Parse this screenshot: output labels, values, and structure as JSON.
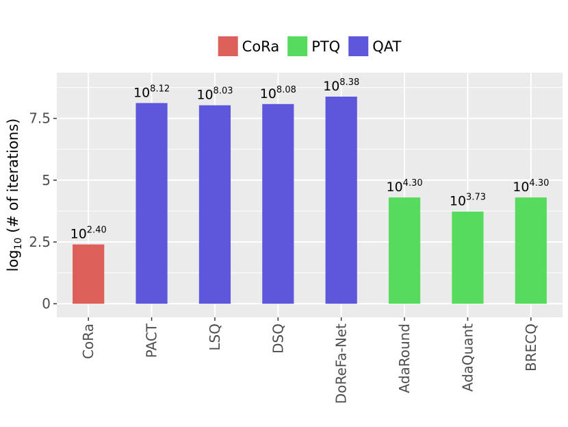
{
  "chart_data": {
    "type": "bar",
    "categories": [
      "CoRa",
      "PACT",
      "LSQ",
      "DSQ",
      "DoReFa-Net",
      "AdaRound",
      "AdaQuant",
      "BRECQ"
    ],
    "values": [
      2.4,
      8.12,
      8.03,
      8.08,
      8.38,
      4.3,
      3.73,
      4.3
    ],
    "groups": [
      "CoRa",
      "QAT",
      "QAT",
      "QAT",
      "QAT",
      "PTQ",
      "PTQ",
      "PTQ"
    ],
    "data_labels": [
      {
        "base": "10",
        "exp": "2.40"
      },
      {
        "base": "10",
        "exp": "8.12"
      },
      {
        "base": "10",
        "exp": "8.03"
      },
      {
        "base": "10",
        "exp": "8.08"
      },
      {
        "base": "10",
        "exp": "8.38"
      },
      {
        "base": "10",
        "exp": "4.30"
      },
      {
        "base": "10",
        "exp": "3.73"
      },
      {
        "base": "10",
        "exp": "4.30"
      }
    ],
    "ylabel": {
      "prefix": "log",
      "subscript": "10",
      "suffix": "(# of iterations)"
    },
    "ylim": [
      -0.55,
      9.35
    ],
    "yticks": [
      0,
      2.5,
      5,
      7.5
    ],
    "ytick_labels": [
      "0",
      "2.5",
      "5",
      "7.5"
    ],
    "grid": true,
    "legend": {
      "position": "top",
      "entries": [
        {
          "name": "CoRa",
          "color": "#dc5f59"
        },
        {
          "name": "PTQ",
          "color": "#57db5f"
        },
        {
          "name": "QAT",
          "color": "#5d57dc"
        }
      ]
    },
    "colors": {
      "CoRa": "#dc5f59",
      "PTQ": "#57db5f",
      "QAT": "#5d57dc"
    },
    "panel_background": "#ebebeb",
    "gridline_color": "#ffffff"
  }
}
